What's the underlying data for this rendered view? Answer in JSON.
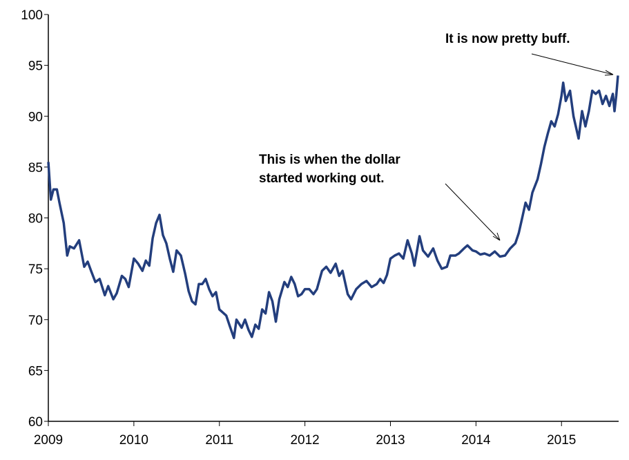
{
  "chart_data": {
    "type": "line",
    "color": "#233e7d",
    "x": [
      2009.0,
      2009.03,
      2009.06,
      2009.1,
      2009.13,
      2009.18,
      2009.22,
      2009.25,
      2009.3,
      2009.36,
      2009.42,
      2009.46,
      2009.5,
      2009.55,
      2009.6,
      2009.66,
      2009.7,
      2009.76,
      2009.8,
      2009.86,
      2009.9,
      2009.94,
      2010.0,
      2010.05,
      2010.1,
      2010.14,
      2010.18,
      2010.22,
      2010.26,
      2010.3,
      2010.34,
      2010.38,
      2010.42,
      2010.46,
      2010.5,
      2010.55,
      2010.6,
      2010.64,
      2010.68,
      2010.72,
      2010.76,
      2010.8,
      2010.84,
      2010.88,
      2010.92,
      2010.96,
      2011.0,
      2011.04,
      2011.08,
      2011.12,
      2011.17,
      2011.2,
      2011.26,
      2011.3,
      2011.34,
      2011.38,
      2011.42,
      2011.46,
      2011.5,
      2011.54,
      2011.58,
      2011.62,
      2011.66,
      2011.7,
      2011.76,
      2011.8,
      2011.84,
      2011.88,
      2011.92,
      2011.96,
      2012.0,
      2012.05,
      2012.1,
      2012.14,
      2012.2,
      2012.25,
      2012.3,
      2012.36,
      2012.4,
      2012.44,
      2012.5,
      2012.54,
      2012.6,
      2012.66,
      2012.72,
      2012.78,
      2012.84,
      2012.88,
      2012.92,
      2012.96,
      2013.0,
      2013.05,
      2013.1,
      2013.15,
      2013.2,
      2013.25,
      2013.28,
      2013.34,
      2013.38,
      2013.44,
      2013.5,
      2013.55,
      2013.6,
      2013.66,
      2013.7,
      2013.76,
      2013.8,
      2013.86,
      2013.9,
      2013.96,
      2014.0,
      2014.05,
      2014.1,
      2014.16,
      2014.22,
      2014.28,
      2014.34,
      2014.4,
      2014.46,
      2014.5,
      2014.54,
      2014.58,
      2014.62,
      2014.66,
      2014.72,
      2014.76,
      2014.8,
      2014.84,
      2014.88,
      2014.92,
      2014.96,
      2015.0,
      2015.02,
      2015.05,
      2015.1,
      2015.14,
      2015.2,
      2015.24,
      2015.28,
      2015.32,
      2015.36,
      2015.4,
      2015.44,
      2015.48,
      2015.52,
      2015.56,
      2015.6,
      2015.62,
      2015.64,
      2015.66
    ],
    "values": [
      85.5,
      81.8,
      82.8,
      82.8,
      81.5,
      79.5,
      76.3,
      77.2,
      77.0,
      77.8,
      75.2,
      75.7,
      74.8,
      73.7,
      74.0,
      72.4,
      73.3,
      72.0,
      72.6,
      74.3,
      74.0,
      73.2,
      76.0,
      75.5,
      74.8,
      75.8,
      75.3,
      78.0,
      79.5,
      80.3,
      78.3,
      77.5,
      76.0,
      74.7,
      76.8,
      76.3,
      74.5,
      72.8,
      71.8,
      71.5,
      73.5,
      73.5,
      74.0,
      73.0,
      72.3,
      72.7,
      71.0,
      70.7,
      70.4,
      69.4,
      68.2,
      70.0,
      69.2,
      70.0,
      69.0,
      68.3,
      69.5,
      69.1,
      71.0,
      70.6,
      72.7,
      71.8,
      69.8,
      72.0,
      73.7,
      73.2,
      74.2,
      73.5,
      72.3,
      72.5,
      73.0,
      73.0,
      72.5,
      73.0,
      74.8,
      75.2,
      74.6,
      75.5,
      74.3,
      74.8,
      72.5,
      72.0,
      73.0,
      73.5,
      73.8,
      73.2,
      73.5,
      74.0,
      73.6,
      74.4,
      76.0,
      76.3,
      76.5,
      76.0,
      77.8,
      76.5,
      75.3,
      78.2,
      76.8,
      76.2,
      77.0,
      75.8,
      75.0,
      75.2,
      76.3,
      76.3,
      76.5,
      77.0,
      77.3,
      76.8,
      76.7,
      76.4,
      76.5,
      76.3,
      76.7,
      76.2,
      76.3,
      77.0,
      77.5,
      78.5,
      80.0,
      81.5,
      80.8,
      82.5,
      83.8,
      85.3,
      87.0,
      88.3,
      89.5,
      89.0,
      90.2,
      92.0,
      93.3,
      91.5,
      92.5,
      90.0,
      87.8,
      90.5,
      89.0,
      90.5,
      92.5,
      92.2,
      92.5,
      91.2,
      92.0,
      91.0,
      92.2,
      90.5,
      92.0,
      94.0
    ],
    "xlim": [
      2009,
      2015.66
    ],
    "xticks": [
      2009,
      2010,
      2011,
      2012,
      2013,
      2014,
      2015
    ],
    "ylim": [
      60,
      100
    ],
    "yticks": [
      60,
      65,
      70,
      75,
      80,
      85,
      90,
      95,
      100
    ],
    "grid": false,
    "annotations": [
      {
        "text": [
          "It is now pretty buff."
        ]
      },
      {
        "text": [
          "This is when the dollar",
          "started working out."
        ]
      }
    ]
  }
}
